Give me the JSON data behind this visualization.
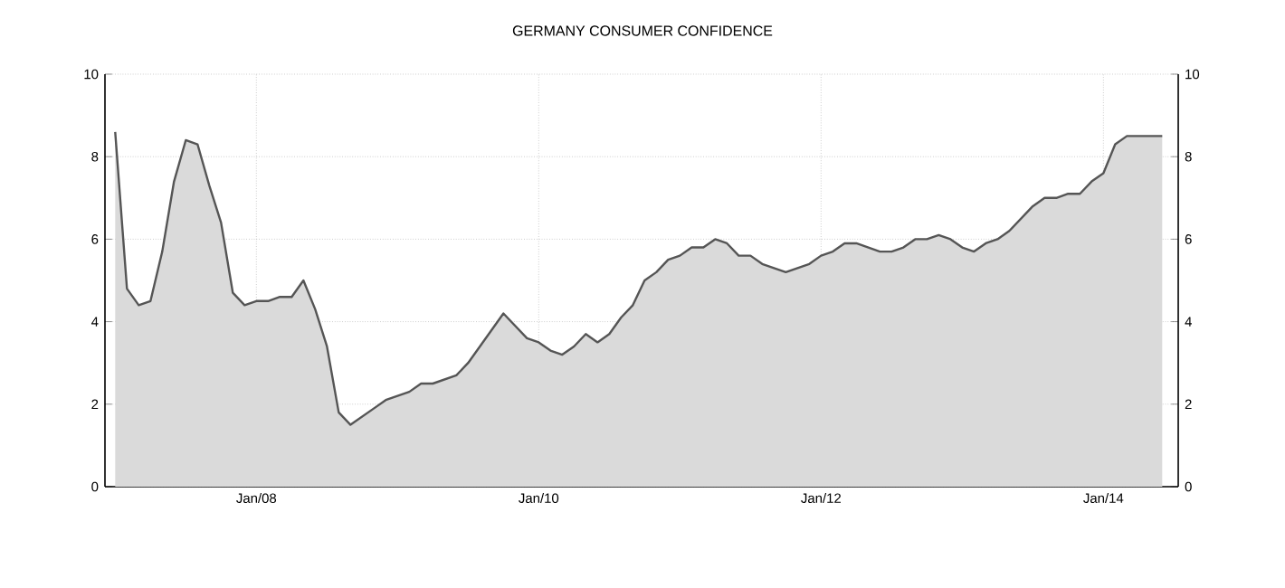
{
  "chart_data": {
    "type": "area",
    "title": "GERMANY CONSUMER CONFIDENCE",
    "x": [
      "2007-01",
      "2007-02",
      "2007-03",
      "2007-04",
      "2007-05",
      "2007-06",
      "2007-07",
      "2007-08",
      "2007-09",
      "2007-10",
      "2007-11",
      "2007-12",
      "2008-01",
      "2008-02",
      "2008-03",
      "2008-04",
      "2008-05",
      "2008-06",
      "2008-07",
      "2008-08",
      "2008-09",
      "2008-10",
      "2008-11",
      "2008-12",
      "2009-01",
      "2009-02",
      "2009-03",
      "2009-04",
      "2009-05",
      "2009-06",
      "2009-07",
      "2009-08",
      "2009-09",
      "2009-10",
      "2009-11",
      "2009-12",
      "2010-01",
      "2010-02",
      "2010-03",
      "2010-04",
      "2010-05",
      "2010-06",
      "2010-07",
      "2010-08",
      "2010-09",
      "2010-10",
      "2010-11",
      "2010-12",
      "2011-01",
      "2011-02",
      "2011-03",
      "2011-04",
      "2011-05",
      "2011-06",
      "2011-07",
      "2011-08",
      "2011-09",
      "2011-10",
      "2011-11",
      "2011-12",
      "2012-01",
      "2012-02",
      "2012-03",
      "2012-04",
      "2012-05",
      "2012-06",
      "2012-07",
      "2012-08",
      "2012-09",
      "2012-10",
      "2012-11",
      "2012-12",
      "2013-01",
      "2013-02",
      "2013-03",
      "2013-04",
      "2013-05",
      "2013-06",
      "2013-07",
      "2013-08",
      "2013-09",
      "2013-10",
      "2013-11",
      "2013-12",
      "2014-01",
      "2014-02",
      "2014-03",
      "2014-04",
      "2014-05",
      "2014-06"
    ],
    "series": [
      {
        "color": "#555555",
        "values": [
          8.6,
          4.8,
          4.4,
          4.5,
          5.7,
          7.4,
          8.4,
          8.3,
          7.3,
          6.4,
          4.7,
          4.4,
          4.5,
          4.5,
          4.6,
          4.6,
          5.0,
          4.3,
          3.4,
          1.8,
          1.5,
          1.7,
          1.9,
          2.1,
          2.2,
          2.3,
          2.5,
          2.5,
          2.6,
          2.7,
          3.0,
          3.4,
          3.8,
          4.2,
          3.9,
          3.6,
          3.5,
          3.3,
          3.2,
          3.4,
          3.7,
          3.5,
          3.7,
          4.1,
          4.4,
          5.0,
          5.2,
          5.5,
          5.6,
          5.8,
          5.8,
          6.0,
          5.9,
          5.6,
          5.6,
          5.4,
          5.3,
          5.2,
          5.3,
          5.4,
          5.6,
          5.7,
          5.9,
          5.9,
          5.8,
          5.7,
          5.7,
          5.8,
          6.0,
          6.0,
          6.1,
          6.0,
          5.8,
          5.7,
          5.9,
          6.0,
          6.2,
          6.5,
          6.8,
          7.0,
          7.0,
          7.1,
          7.1,
          7.4,
          7.6,
          8.3,
          8.5,
          8.5,
          8.5,
          8.5
        ]
      }
    ],
    "xlim": [
      "2006-12-05",
      "2014-07-12"
    ],
    "xticks": [
      {
        "value": "2008-01",
        "label": "Jan/08"
      },
      {
        "value": "2010-01",
        "label": "Jan/10"
      },
      {
        "value": "2012-01",
        "label": "Jan/12"
      },
      {
        "value": "2014-01",
        "label": "Jan/14"
      }
    ],
    "ylim": [
      0,
      10
    ],
    "yticks": [
      0,
      2,
      4,
      6,
      8,
      10
    ],
    "y2lim": [
      0,
      10
    ],
    "y2ticks": [
      0,
      2,
      4,
      6,
      8,
      10
    ],
    "grid": true
  }
}
